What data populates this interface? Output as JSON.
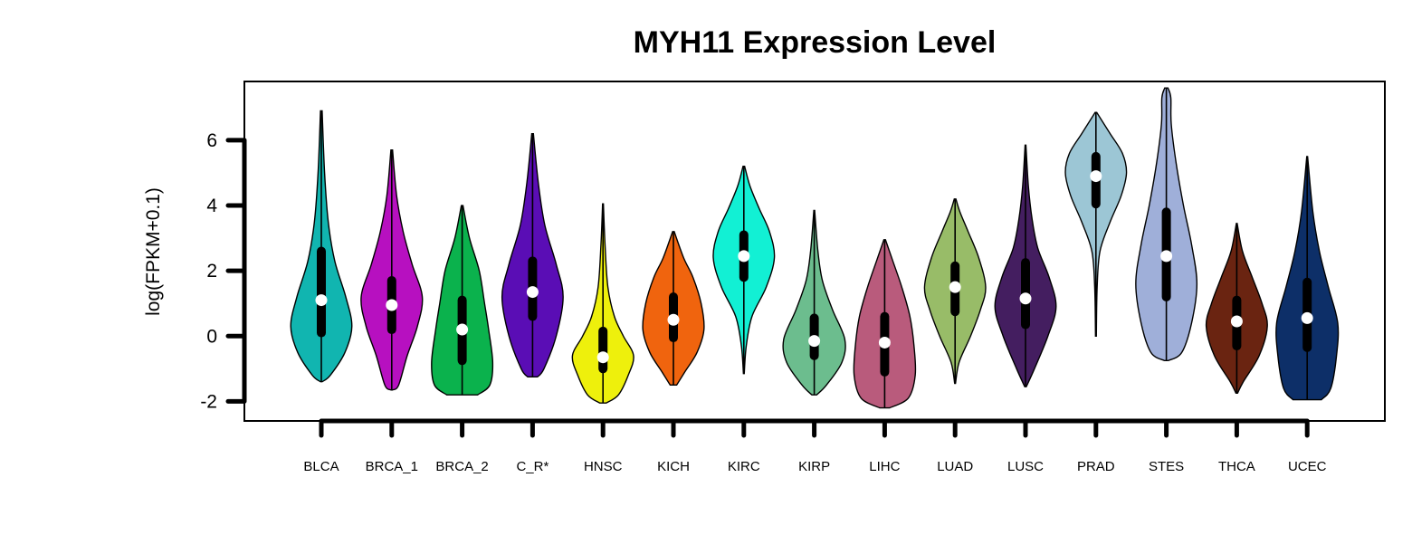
{
  "chart_data": {
    "type": "violin",
    "title": "MYH11 Expression Level",
    "xlabel": "",
    "ylabel": "log(FPKM+0.1)",
    "ylim": [
      -2.6,
      7.8
    ],
    "yticks": [
      -2,
      0,
      2,
      4,
      6
    ],
    "grid": false,
    "categories": [
      "BLCA",
      "BRCA_1",
      "BRCA_2",
      "C_R*",
      "HNSC",
      "KICH",
      "KIRC",
      "KIRP",
      "LIHC",
      "LUAD",
      "LUSC",
      "PRAD",
      "STES",
      "THCA",
      "UCEC"
    ],
    "series": [
      {
        "category": "BLCA",
        "color": "#11b5b0",
        "min": -1.4,
        "max": 6.9,
        "q1": 0.1,
        "median": 1.1,
        "q3": 2.6,
        "profile": [
          [
            -1.4,
            0.02
          ],
          [
            -1.2,
            0.22
          ],
          [
            -0.5,
            0.58
          ],
          [
            0.3,
            0.75
          ],
          [
            1.2,
            0.6
          ],
          [
            2.3,
            0.33
          ],
          [
            3.5,
            0.17
          ],
          [
            5.0,
            0.08
          ],
          [
            6.9,
            0.02
          ]
        ]
      },
      {
        "category": "BRCA_1",
        "color": "#b710c0",
        "min": -1.65,
        "max": 5.7,
        "q1": 0.2,
        "median": 0.95,
        "q3": 1.7,
        "profile": [
          [
            -1.65,
            0.02
          ],
          [
            -1.5,
            0.17
          ],
          [
            -0.6,
            0.38
          ],
          [
            0.3,
            0.63
          ],
          [
            1.2,
            0.75
          ],
          [
            2.2,
            0.5
          ],
          [
            3.2,
            0.28
          ],
          [
            4.3,
            0.12
          ],
          [
            5.7,
            0.02
          ]
        ]
      },
      {
        "category": "BRCA_2",
        "color": "#0bb24d",
        "min": -1.8,
        "max": 4.0,
        "q1": -0.75,
        "median": 0.2,
        "q3": 1.1,
        "profile": [
          [
            -1.8,
            0.38
          ],
          [
            -1.5,
            0.68
          ],
          [
            -0.8,
            0.75
          ],
          [
            0.2,
            0.65
          ],
          [
            1.0,
            0.55
          ],
          [
            2.0,
            0.42
          ],
          [
            3.0,
            0.18
          ],
          [
            4.0,
            0.02
          ]
        ]
      },
      {
        "category": "C_R*",
        "color": "#5a0db5",
        "min": -1.25,
        "max": 6.2,
        "q1": 0.6,
        "median": 1.35,
        "q3": 2.3,
        "profile": [
          [
            -1.25,
            0.12
          ],
          [
            -1.0,
            0.28
          ],
          [
            0.0,
            0.58
          ],
          [
            1.2,
            0.75
          ],
          [
            2.2,
            0.58
          ],
          [
            3.4,
            0.3
          ],
          [
            4.7,
            0.14
          ],
          [
            6.2,
            0.02
          ]
        ]
      },
      {
        "category": "HNSC",
        "color": "#eef00c",
        "min": -2.05,
        "max": 4.05,
        "q1": -1.0,
        "median": -0.65,
        "q3": 0.15,
        "profile": [
          [
            -2.05,
            0.08
          ],
          [
            -1.8,
            0.38
          ],
          [
            -1.2,
            0.62
          ],
          [
            -0.6,
            0.75
          ],
          [
            0.0,
            0.5
          ],
          [
            0.6,
            0.28
          ],
          [
            1.5,
            0.12
          ],
          [
            2.8,
            0.05
          ],
          [
            4.05,
            0.01
          ]
        ]
      },
      {
        "category": "KICH",
        "color": "#f0640e",
        "min": -1.5,
        "max": 3.2,
        "q1": -0.05,
        "median": 0.5,
        "q3": 1.2,
        "profile": [
          [
            -1.5,
            0.08
          ],
          [
            -1.1,
            0.28
          ],
          [
            -0.5,
            0.58
          ],
          [
            0.2,
            0.75
          ],
          [
            1.0,
            0.68
          ],
          [
            1.8,
            0.48
          ],
          [
            2.4,
            0.25
          ],
          [
            3.2,
            0.02
          ]
        ]
      },
      {
        "category": "KIRC",
        "color": "#12f0d4",
        "min": -1.15,
        "max": 5.2,
        "q1": 1.8,
        "median": 2.45,
        "q3": 3.1,
        "profile": [
          [
            -1.15,
            0.01
          ],
          [
            -0.3,
            0.06
          ],
          [
            0.6,
            0.2
          ],
          [
            1.5,
            0.55
          ],
          [
            2.4,
            0.75
          ],
          [
            3.2,
            0.63
          ],
          [
            3.9,
            0.38
          ],
          [
            4.6,
            0.15
          ],
          [
            5.2,
            0.02
          ]
        ]
      },
      {
        "category": "KIRP",
        "color": "#6cbd8e",
        "min": -1.8,
        "max": 3.85,
        "q1": -0.6,
        "median": -0.15,
        "q3": 0.55,
        "profile": [
          [
            -1.8,
            0.06
          ],
          [
            -1.5,
            0.3
          ],
          [
            -0.8,
            0.68
          ],
          [
            -0.1,
            0.75
          ],
          [
            0.8,
            0.45
          ],
          [
            1.7,
            0.2
          ],
          [
            2.6,
            0.09
          ],
          [
            3.85,
            0.01
          ]
        ]
      },
      {
        "category": "LIHC",
        "color": "#b95b7c",
        "min": -2.2,
        "max": 2.95,
        "q1": -1.1,
        "median": -0.2,
        "q3": 0.6,
        "profile": [
          [
            -2.2,
            0.12
          ],
          [
            -1.9,
            0.58
          ],
          [
            -1.2,
            0.75
          ],
          [
            -0.3,
            0.72
          ],
          [
            0.6,
            0.62
          ],
          [
            1.5,
            0.42
          ],
          [
            2.3,
            0.2
          ],
          [
            2.95,
            0.02
          ]
        ]
      },
      {
        "category": "LUAD",
        "color": "#98bc68",
        "min": -1.45,
        "max": 4.2,
        "q1": 0.75,
        "median": 1.5,
        "q3": 2.15,
        "profile": [
          [
            -1.45,
            0.01
          ],
          [
            -0.8,
            0.1
          ],
          [
            0.0,
            0.38
          ],
          [
            0.8,
            0.62
          ],
          [
            1.5,
            0.75
          ],
          [
            2.4,
            0.58
          ],
          [
            3.2,
            0.32
          ],
          [
            3.8,
            0.12
          ],
          [
            4.2,
            0.02
          ]
        ]
      },
      {
        "category": "LUSC",
        "color": "#441e60",
        "min": -1.55,
        "max": 5.85,
        "q1": 0.35,
        "median": 1.15,
        "q3": 2.25,
        "profile": [
          [
            -1.55,
            0.02
          ],
          [
            -1.0,
            0.22
          ],
          [
            0.0,
            0.55
          ],
          [
            0.9,
            0.75
          ],
          [
            1.8,
            0.58
          ],
          [
            2.7,
            0.3
          ],
          [
            3.6,
            0.16
          ],
          [
            4.6,
            0.07
          ],
          [
            5.85,
            0.01
          ]
        ]
      },
      {
        "category": "PRAD",
        "color": "#9cc6d5",
        "min": 0.0,
        "max": 6.85,
        "q1": 4.05,
        "median": 4.9,
        "q3": 5.5,
        "profile": [
          [
            0.0,
            0.01
          ],
          [
            1.5,
            0.03
          ],
          [
            2.6,
            0.1
          ],
          [
            3.5,
            0.35
          ],
          [
            4.3,
            0.62
          ],
          [
            5.0,
            0.75
          ],
          [
            5.6,
            0.65
          ],
          [
            6.2,
            0.35
          ],
          [
            6.85,
            0.02
          ]
        ]
      },
      {
        "category": "STES",
        "color": "#9fafd9",
        "min": -0.75,
        "max": 7.6,
        "q1": 1.2,
        "median": 2.45,
        "q3": 3.8,
        "profile": [
          [
            -0.75,
            0.05
          ],
          [
            -0.5,
            0.38
          ],
          [
            0.4,
            0.62
          ],
          [
            1.6,
            0.75
          ],
          [
            2.8,
            0.62
          ],
          [
            4.0,
            0.42
          ],
          [
            5.3,
            0.24
          ],
          [
            6.5,
            0.12
          ],
          [
            7.3,
            0.11
          ],
          [
            7.6,
            0.04
          ]
        ]
      },
      {
        "category": "THCA",
        "color": "#6a2411",
        "min": -1.75,
        "max": 3.45,
        "q1": -0.3,
        "median": 0.45,
        "q3": 1.1,
        "profile": [
          [
            -1.75,
            0.02
          ],
          [
            -1.4,
            0.16
          ],
          [
            -0.6,
            0.55
          ],
          [
            0.3,
            0.75
          ],
          [
            1.0,
            0.62
          ],
          [
            1.8,
            0.38
          ],
          [
            2.6,
            0.14
          ],
          [
            3.45,
            0.01
          ]
        ]
      },
      {
        "category": "UCEC",
        "color": "#0d2f68",
        "min": -1.95,
        "max": 5.5,
        "q1": -0.35,
        "median": 0.55,
        "q3": 1.65,
        "profile": [
          [
            -1.95,
            0.35
          ],
          [
            -1.6,
            0.58
          ],
          [
            -0.6,
            0.72
          ],
          [
            0.4,
            0.75
          ],
          [
            1.5,
            0.52
          ],
          [
            2.6,
            0.3
          ],
          [
            3.8,
            0.14
          ],
          [
            5.5,
            0.01
          ]
        ]
      }
    ]
  }
}
